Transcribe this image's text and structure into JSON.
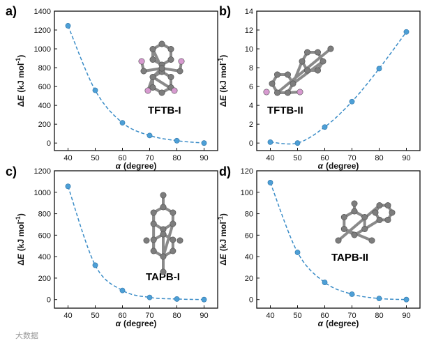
{
  "chart_data": [
    {
      "type": "scatter",
      "panel_label": "a)",
      "molecule_label": "TFTB-I",
      "x": [
        40,
        50,
        60,
        70,
        80,
        90
      ],
      "y": [
        1245,
        560,
        215,
        80,
        25,
        0
      ],
      "xlabel_symbol": "α",
      "xlabel_unit": "(degree)",
      "ylabel_delta": "Δ",
      "ylabel_symbol": "E",
      "ylabel_unit": "(kJ mol",
      "ylabel_exp": "-1",
      "ylabel_close": ")",
      "xlim": [
        35,
        95
      ],
      "ylim": [
        -80,
        1400
      ],
      "xticks": [
        "40",
        "50",
        "60",
        "70",
        "80",
        "90"
      ],
      "yticks": [
        "0",
        "200",
        "400",
        "600",
        "800",
        "1000",
        "1200",
        "1400"
      ],
      "fit": "dashed"
    },
    {
      "type": "scatter",
      "panel_label": "b)",
      "molecule_label": "TFTB-II",
      "x": [
        40,
        50,
        60,
        70,
        80,
        90
      ],
      "y": [
        0.1,
        0.0,
        1.7,
        4.4,
        7.9,
        11.8
      ],
      "xlabel_symbol": "α",
      "xlabel_unit": "(degree)",
      "ylabel_delta": "Δ",
      "ylabel_symbol": "E",
      "ylabel_unit": "(kJ mol",
      "ylabel_exp": "-1",
      "ylabel_close": ")",
      "xlim": [
        35,
        95
      ],
      "ylim": [
        -0.8,
        14
      ],
      "xticks": [
        "40",
        "50",
        "60",
        "70",
        "80",
        "90"
      ],
      "yticks": [
        "0",
        "2",
        "4",
        "6",
        "8",
        "10",
        "12",
        "14"
      ],
      "fit": "dashed"
    },
    {
      "type": "scatter",
      "panel_label": "c)",
      "molecule_label": "TAPB-I",
      "x": [
        40,
        50,
        60,
        70,
        80,
        90
      ],
      "y": [
        1055,
        320,
        85,
        20,
        5,
        0
      ],
      "xlabel_symbol": "α",
      "xlabel_unit": "(degree)",
      "ylabel_delta": "Δ",
      "ylabel_symbol": "E",
      "ylabel_unit": "(kJ mol",
      "ylabel_exp": "-1",
      "ylabel_close": ")",
      "xlim": [
        35,
        95
      ],
      "ylim": [
        -80,
        1200
      ],
      "xticks": [
        "40",
        "50",
        "60",
        "70",
        "80",
        "90"
      ],
      "yticks": [
        "0",
        "200",
        "400",
        "600",
        "800",
        "1000",
        "1200"
      ],
      "fit": "dashed"
    },
    {
      "type": "scatter",
      "panel_label": "d)",
      "molecule_label": "TAPB-II",
      "x": [
        40,
        50,
        60,
        70,
        80,
        90
      ],
      "y": [
        109,
        44,
        16,
        5,
        1,
        0
      ],
      "xlabel_symbol": "α",
      "xlabel_unit": "(degree)",
      "ylabel_delta": "Δ",
      "ylabel_symbol": "E",
      "ylabel_unit": "(kJ mol",
      "ylabel_exp": "-1",
      "ylabel_close": ")",
      "xlim": [
        35,
        95
      ],
      "ylim": [
        -8,
        120
      ],
      "xticks": [
        "40",
        "50",
        "60",
        "70",
        "80",
        "90"
      ],
      "yticks": [
        "0",
        "20",
        "40",
        "60",
        "80",
        "100",
        "120"
      ],
      "fit": "dashed"
    }
  ],
  "colors": {
    "marker": "#4d9fd6",
    "marker_stroke": "#2a73a8",
    "fit_line": "#3a8cc7",
    "axis": "#111111",
    "atom_carbon": "#7d7d7d",
    "atom_fluorine": "#d79ad0",
    "bond": "#8a8a8a"
  },
  "watermark": "大数据"
}
